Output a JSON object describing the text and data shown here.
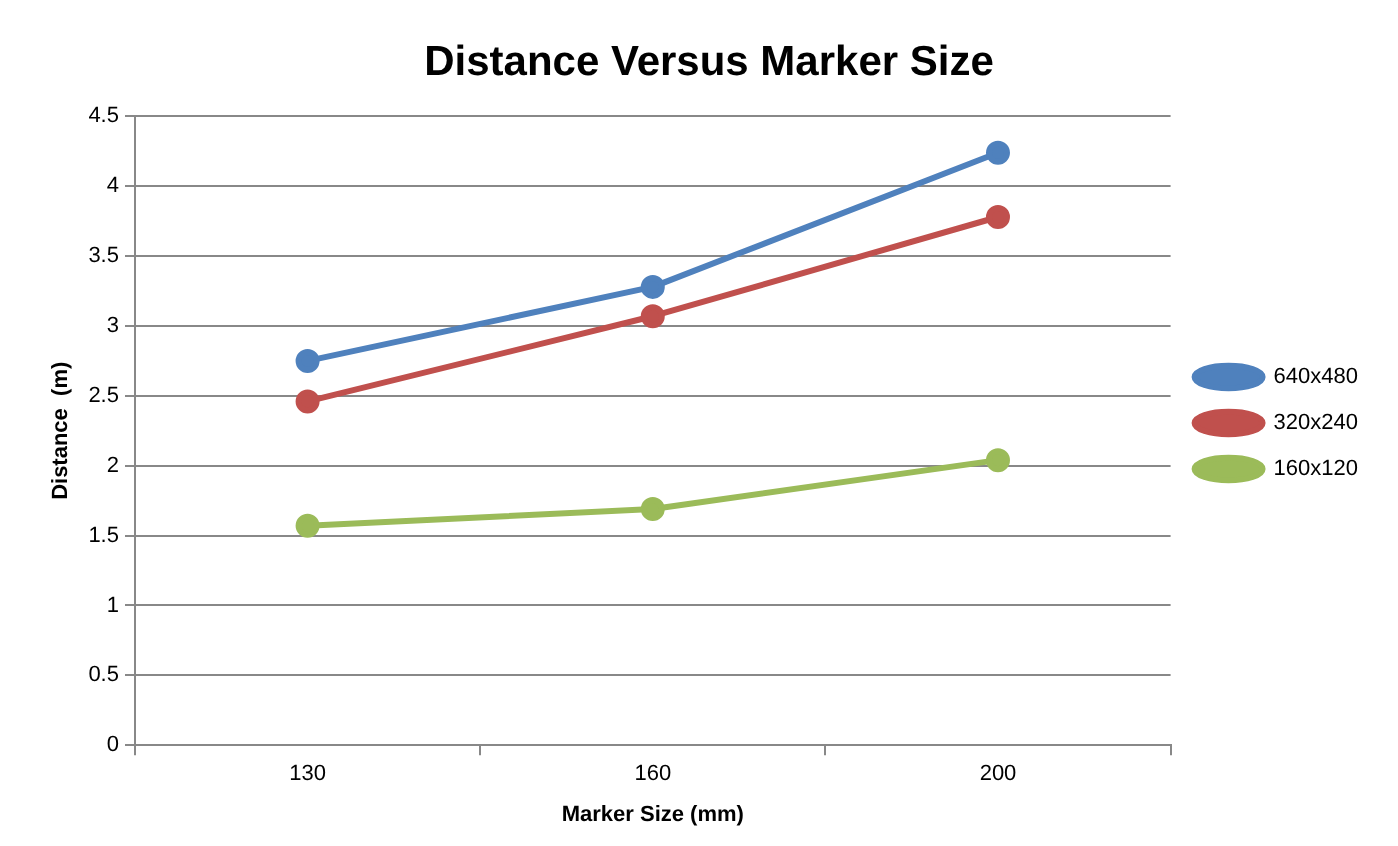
{
  "chart_data": {
    "type": "line",
    "title": "Distance Versus Marker Size",
    "xlabel": "Marker Size (mm)",
    "ylabel": "Distance  (m)",
    "categories": [
      "130",
      "160",
      "200"
    ],
    "series": [
      {
        "name": "640x480",
        "color": "#4f81bd",
        "values": [
          2.75,
          3.28,
          4.24
        ]
      },
      {
        "name": "320x240",
        "color": "#c0504d",
        "values": [
          2.46,
          3.07,
          3.78
        ]
      },
      {
        "name": "160x120",
        "color": "#9bbb59",
        "values": [
          1.57,
          1.69,
          2.04
        ]
      }
    ],
    "ylim": [
      0,
      4.5
    ],
    "yticks": [
      0,
      0.5,
      1,
      1.5,
      2,
      2.5,
      3,
      3.5,
      4,
      4.5
    ],
    "grid": "y",
    "legend": "right",
    "marker": "circle",
    "line_style": "solid"
  }
}
